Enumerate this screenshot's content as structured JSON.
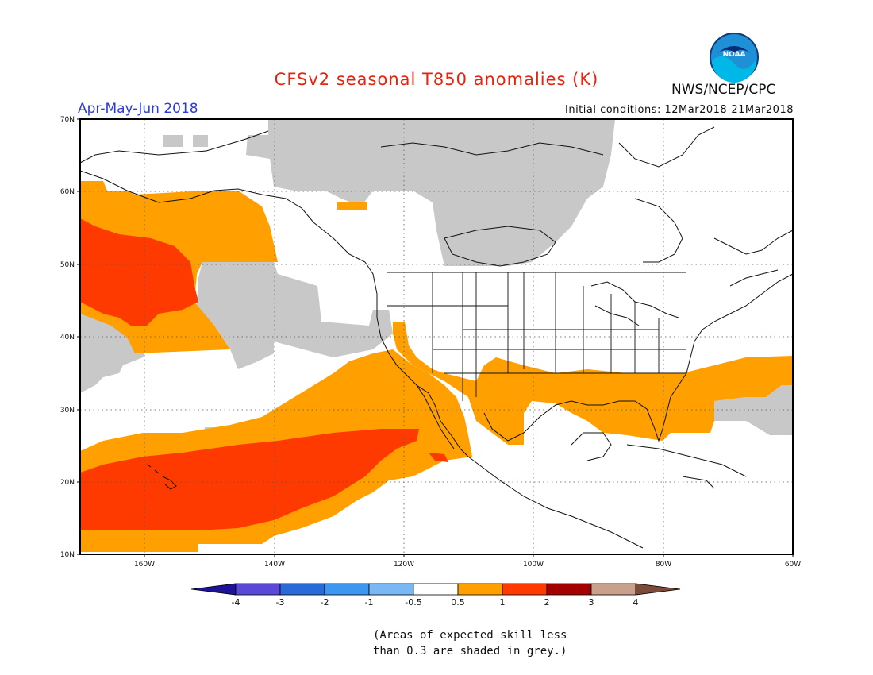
{
  "header": {
    "title": "CFSv2 seasonal T850 anomalies (K)",
    "period": "Apr-May-Jun 2018",
    "initial_conditions": "Initial conditions: 12Mar2018-21Mar2018",
    "agency": "NWS/NCEP/CPC",
    "logo_text": "NOAA"
  },
  "map": {
    "projection": "equirectangular",
    "lon_range_deg": [
      -171,
      -60
    ],
    "lat_range_deg": [
      10,
      70
    ],
    "lat_labels": [
      "70N",
      "60N",
      "50N",
      "40N",
      "30N",
      "20N",
      "10N"
    ],
    "lon_labels": [
      "160W",
      "140W",
      "120W",
      "100W",
      "80W",
      "60W"
    ],
    "grid": "dotted"
  },
  "colorbar": {
    "bounds": [
      "-4",
      "-3",
      "-2",
      "-1",
      "-0.5",
      "0.5",
      "1",
      "2",
      "3",
      "4"
    ],
    "colors": [
      "#1e1299",
      "#5a48d8",
      "#2a6ad8",
      "#3d96f0",
      "#7ab8f5",
      "#ffffff",
      "#ff9f00",
      "#ff3a00",
      "#a50000",
      "#c8a08c",
      "#7e4a3a"
    ],
    "skill_grey": "#c8c8c8"
  },
  "note": {
    "line1": "(Areas of expected skill less",
    "line2": "than 0.3 are shaded in grey.)"
  }
}
